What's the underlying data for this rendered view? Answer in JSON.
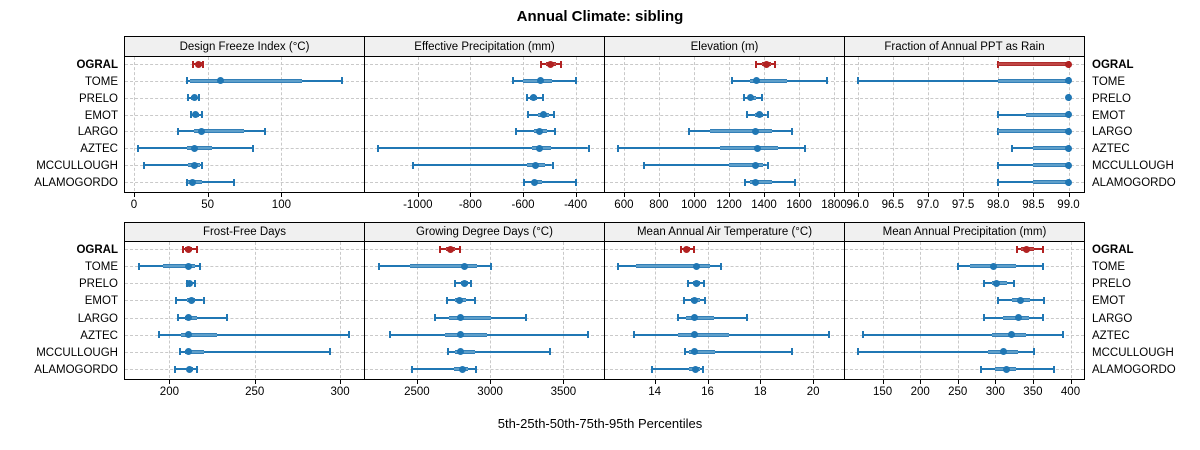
{
  "title": "Annual Climate: sibling",
  "footer": "5th-25th-50th-75th-95th Percentiles",
  "highlight_site": "OGRAL",
  "colors": {
    "highlight": "#b22222",
    "highlight_bar_edge": "#a51f22",
    "highlight_bar_mid": "#c85450",
    "normal": "#2077b4",
    "normal_bar_edge": "#1d6fae",
    "normal_bar_mid": "#74afd3",
    "strip_bg": "#f0f0f0",
    "panel_border": "#000000",
    "grid": "#c9c9c9"
  },
  "chart_data": {
    "type": "dotplot-percentiles",
    "percentiles": [
      5,
      25,
      50,
      75,
      95
    ],
    "legend_note": "5th-25th-50th-75th-95th Percentiles",
    "sites": [
      "OGRAL",
      "TOME",
      "PRELO",
      "EMOT",
      "LARGO",
      "AZTEC",
      "MCCULLOUGH",
      "ALAMOGORDO"
    ],
    "panels": [
      {
        "title": "Design Freeze Index (°C)",
        "grid_row": 0,
        "xlim": [
          -6,
          156
        ],
        "ticks": [
          0,
          50,
          100
        ],
        "tick_labels": [
          "0",
          "50",
          "100"
        ],
        "series": [
          [
            40,
            42,
            44,
            46,
            47
          ],
          [
            36,
            38,
            59,
            114,
            141
          ],
          [
            37,
            39,
            41,
            43,
            44
          ],
          [
            39,
            41,
            42,
            44,
            46
          ],
          [
            30,
            41,
            46,
            75,
            89
          ],
          [
            3,
            36,
            41,
            53,
            81
          ],
          [
            7,
            37,
            41,
            45,
            46
          ],
          [
            36,
            37,
            40,
            46,
            68
          ]
        ]
      },
      {
        "title": "Effective Precipitation (mm)",
        "grid_row": 0,
        "xlim": [
          -1201,
          -292
        ],
        "ticks": [
          -1000,
          -800,
          -600,
          -400
        ],
        "tick_labels": [
          "-1000",
          "-800",
          "-600",
          "-400"
        ],
        "series": [
          [
            -533,
            -512,
            -494,
            -473,
            -455
          ],
          [
            -637,
            -600,
            -534,
            -490,
            -398
          ],
          [
            -586,
            -572,
            -561,
            -545,
            -525
          ],
          [
            -582,
            -545,
            -521,
            -500,
            -484
          ],
          [
            -625,
            -560,
            -536,
            -508,
            -477
          ],
          [
            -1151,
            -565,
            -536,
            -495,
            -351
          ],
          [
            -1019,
            -585,
            -551,
            -518,
            -488
          ],
          [
            -598,
            -567,
            -555,
            -528,
            -398
          ]
        ]
      },
      {
        "title": "Elevation (m)",
        "grid_row": 0,
        "xlim": [
          492,
          1857
        ],
        "ticks": [
          600,
          800,
          1000,
          1200,
          1400,
          1600,
          1800
        ],
        "tick_labels": [
          "600",
          "800",
          "1000",
          "1200",
          "1400",
          "1600",
          "1800"
        ],
        "series": [
          [
            1354,
            1390,
            1414,
            1442,
            1463
          ],
          [
            1215,
            1320,
            1357,
            1530,
            1760
          ],
          [
            1283,
            1307,
            1320,
            1352,
            1386
          ],
          [
            1302,
            1350,
            1372,
            1396,
            1420
          ],
          [
            971,
            1094,
            1354,
            1448,
            1562
          ],
          [
            564,
            1150,
            1363,
            1480,
            1634
          ],
          [
            714,
            1200,
            1350,
            1396,
            1420
          ],
          [
            1293,
            1322,
            1354,
            1448,
            1577
          ]
        ]
      },
      {
        "title": "Fraction of Annual PPT as Rain",
        "grid_row": 0,
        "xlim": [
          95.82,
          99.22
        ],
        "ticks": [
          96.0,
          96.5,
          97.0,
          97.5,
          98.0,
          98.5,
          99.0
        ],
        "tick_labels": [
          "96.0",
          "96.5",
          "97.0",
          "97.5",
          "98.0",
          "98.5",
          "99.0"
        ],
        "series": [
          [
            98,
            98,
            99,
            99,
            99
          ],
          [
            96,
            98,
            99,
            99,
            99
          ],
          [
            99,
            99,
            99,
            99,
            99
          ],
          [
            98,
            98.4,
            99,
            99,
            99
          ],
          [
            98,
            98,
            99,
            99,
            99
          ],
          [
            98.2,
            98.5,
            99,
            99,
            99
          ],
          [
            98,
            98.5,
            99,
            99,
            99
          ],
          [
            98,
            98.5,
            99,
            99,
            99
          ]
        ]
      },
      {
        "title": "Frost-Free Days",
        "grid_row": 1,
        "xlim": [
          174,
          314
        ],
        "ticks": [
          200,
          250,
          300
        ],
        "tick_labels": [
          "200",
          "250",
          "300"
        ],
        "series": [
          [
            208,
            209,
            211,
            213,
            216
          ],
          [
            182,
            196,
            211,
            215,
            218
          ],
          [
            210,
            211,
            212,
            213,
            215
          ],
          [
            204,
            210,
            213,
            215,
            220
          ],
          [
            205,
            209,
            211,
            216,
            234
          ],
          [
            194,
            207,
            211,
            228,
            305
          ],
          [
            206,
            209,
            211,
            220,
            294
          ],
          [
            203,
            210,
            212,
            214,
            216
          ]
        ]
      },
      {
        "title": "Growing Degree Days (°C)",
        "grid_row": 1,
        "xlim": [
          2146,
          3777
        ],
        "ticks": [
          2500,
          3000,
          3500
        ],
        "tick_labels": [
          "2500",
          "3000",
          "3500"
        ],
        "series": [
          [
            2660,
            2700,
            2732,
            2762,
            2795
          ],
          [
            2240,
            2455,
            2822,
            2910,
            3007
          ],
          [
            2759,
            2800,
            2827,
            2852,
            2872
          ],
          [
            2705,
            2760,
            2793,
            2832,
            2897
          ],
          [
            2624,
            2722,
            2795,
            3003,
            3243
          ],
          [
            2316,
            2690,
            2795,
            2980,
            3667
          ],
          [
            2714,
            2762,
            2800,
            2900,
            3408
          ],
          [
            2466,
            2750,
            2811,
            2852,
            2901
          ]
        ]
      },
      {
        "title": "Mean Annual Air Temperature (°C)",
        "grid_row": 1,
        "xlim": [
          12.12,
          21.17
        ],
        "ticks": [
          14,
          16,
          18,
          20
        ],
        "tick_labels": [
          "14",
          "16",
          "18",
          "20"
        ],
        "series": [
          [
            15.0,
            15.1,
            15.2,
            15.35,
            15.5
          ],
          [
            12.6,
            13.3,
            15.6,
            16.1,
            16.5
          ],
          [
            15.25,
            15.45,
            15.6,
            15.72,
            15.86
          ],
          [
            15.1,
            15.38,
            15.5,
            15.72,
            15.92
          ],
          [
            14.9,
            15.2,
            15.5,
            16.25,
            17.5
          ],
          [
            13.2,
            14.9,
            15.5,
            16.8,
            20.6
          ],
          [
            15.15,
            15.3,
            15.5,
            16.3,
            19.2
          ],
          [
            13.9,
            15.3,
            15.55,
            15.72,
            15.82
          ]
        ]
      },
      {
        "title": "Mean Annual Precipitation (mm)",
        "grid_row": 1,
        "xlim": [
          100,
          418
        ],
        "ticks": [
          150,
          200,
          250,
          300,
          350,
          400
        ],
        "tick_labels": [
          "150",
          "200",
          "250",
          "300",
          "350",
          "400"
        ],
        "series": [
          [
            329,
            334,
            341,
            352,
            364
          ],
          [
            250,
            266,
            298,
            328,
            363
          ],
          [
            285,
            295,
            301,
            315,
            325
          ],
          [
            304,
            322,
            334,
            346,
            365
          ],
          [
            285,
            310,
            331,
            345,
            363
          ],
          [
            124,
            295,
            322,
            341,
            390
          ],
          [
            117,
            290,
            311,
            330,
            352
          ],
          [
            281,
            300,
            315,
            328,
            378
          ]
        ]
      }
    ]
  }
}
